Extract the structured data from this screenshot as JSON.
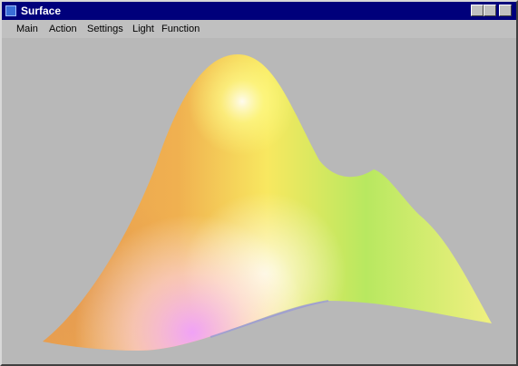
{
  "window": {
    "title": "Surface"
  },
  "menu": [
    "Main",
    "Action",
    "Settings",
    "Light",
    "Function"
  ]
}
